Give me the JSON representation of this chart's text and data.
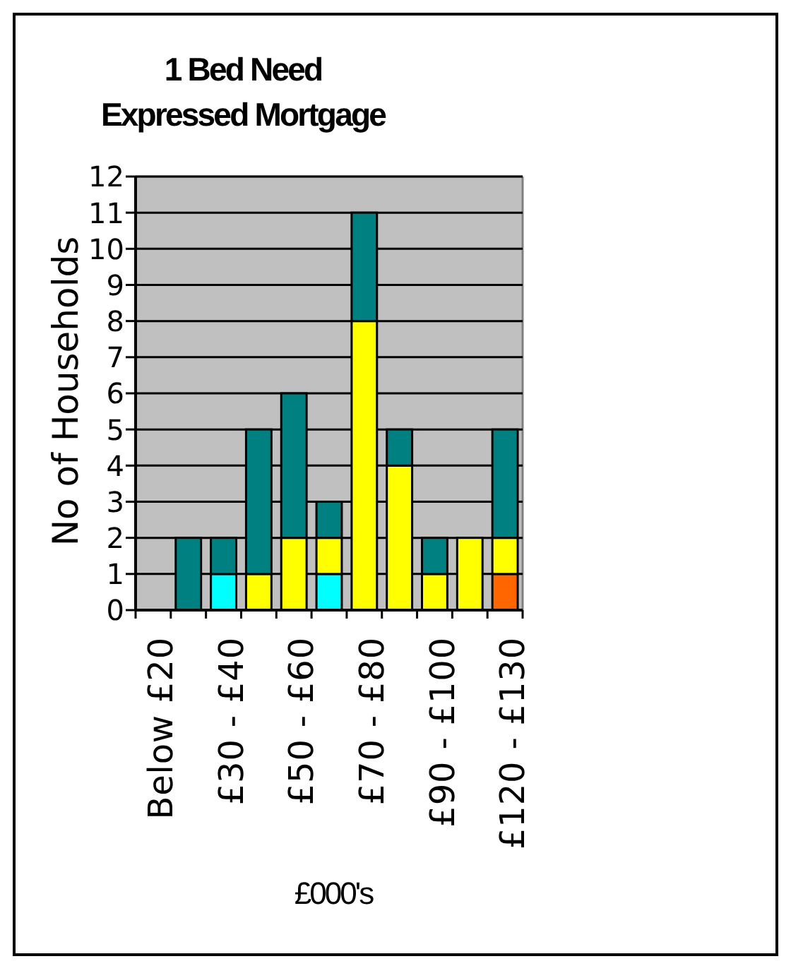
{
  "chart_data": {
    "type": "bar",
    "title": "1 Bed Need\nExpressed Mortgage",
    "xlabel": "£000's",
    "ylabel": "No of Households",
    "categories": [
      "Below £20",
      null,
      "£30 - £40",
      null,
      "£50 - £60",
      null,
      "£70 - £80",
      null,
      "£90 - £100",
      null,
      "£120 - £130"
    ],
    "stacked": true,
    "series": [
      {
        "color": "#00ffff",
        "values": [
          null,
          null,
          1,
          null,
          null,
          1,
          null,
          null,
          null,
          null,
          null
        ]
      },
      {
        "color": "#ff6600",
        "values": [
          null,
          null,
          null,
          null,
          null,
          null,
          null,
          null,
          null,
          null,
          1
        ]
      },
      {
        "color": "#ffff00",
        "values": [
          null,
          null,
          null,
          1,
          2,
          1,
          8,
          4,
          1,
          2,
          1
        ]
      },
      {
        "color": "#008080",
        "values": [
          null,
          2,
          1,
          4,
          4,
          1,
          3,
          1,
          1,
          null,
          3
        ]
      }
    ],
    "ylim": [
      0,
      12
    ],
    "yticks": [
      0,
      1,
      2,
      3,
      4,
      5,
      6,
      7,
      8,
      9,
      10,
      11,
      12
    ],
    "grid": "y"
  }
}
